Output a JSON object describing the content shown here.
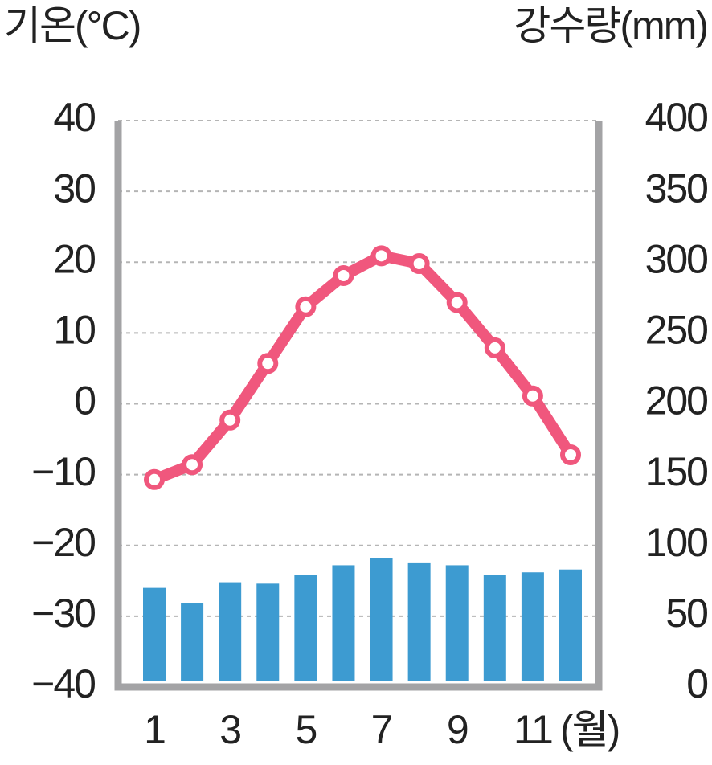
{
  "chart_data": {
    "type": "combo",
    "y_label": "기온(°C)",
    "y2_label": "강수량(mm)",
    "x_label": "(월)",
    "categories": [
      "1",
      null,
      "3",
      null,
      "5",
      null,
      "7",
      null,
      "9",
      null,
      "11",
      null
    ],
    "series": [
      {
        "type": "bar",
        "axis": "y2",
        "color": "#3d9bd1",
        "values": [
          70,
          59,
          74,
          73,
          79,
          86,
          91,
          88,
          86,
          79,
          81,
          83
        ]
      },
      {
        "type": "line",
        "color": "#f0577d",
        "values": [
          -10.7,
          -8.6,
          -2.3,
          5.7,
          13.7,
          18.1,
          20.9,
          19.8,
          14.3,
          7.9,
          1.1,
          -7.2
        ]
      }
    ],
    "ylim": [
      -40,
      40
    ],
    "yticks": [
      {
        "value": -40,
        "label": "−40"
      },
      {
        "value": -30,
        "label": "−30"
      },
      {
        "value": -20,
        "label": "−20"
      },
      {
        "value": -10,
        "label": "−10"
      },
      0,
      10,
      20,
      30,
      40
    ],
    "y2lim": [
      0,
      400
    ],
    "y2ticks": [
      0,
      50,
      100,
      150,
      200,
      250,
      300,
      350,
      400
    ],
    "grid": true
  }
}
